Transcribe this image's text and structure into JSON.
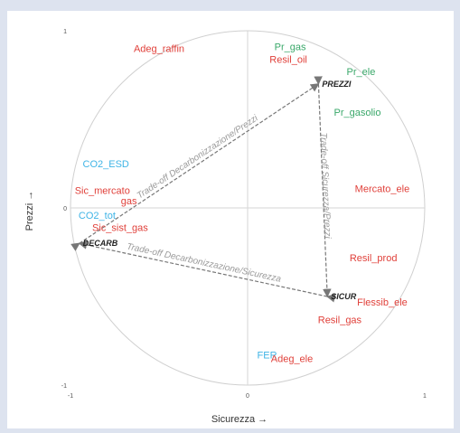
{
  "chart_data": {
    "type": "scatter",
    "title": "",
    "xlabel": "Sicurezza →",
    "ylabel": "Prezzi →",
    "xlim": [
      -1,
      1
    ],
    "ylim": [
      -1,
      1
    ],
    "grid": false,
    "unit_circle": true,
    "x_ticks": [
      "-1",
      "0",
      "1"
    ],
    "y_ticks": [
      "1",
      "0",
      "-1"
    ],
    "colors": {
      "red": "#e0403a",
      "green": "#3aa86a",
      "blue": "#3fb4e6",
      "arrow": "#777777"
    },
    "variables": [
      {
        "label": "Adeg_raffin",
        "x": -0.5,
        "y": 0.88,
        "color": "red"
      },
      {
        "label": "Pr_gas",
        "x": 0.24,
        "y": 0.89,
        "color": "green"
      },
      {
        "label": "Resil_oil",
        "x": 0.23,
        "y": 0.82,
        "color": "red"
      },
      {
        "label": "Pr_ele",
        "x": 0.64,
        "y": 0.75,
        "color": "green"
      },
      {
        "label": "Pr_gasolio",
        "x": 0.62,
        "y": 0.52,
        "color": "green"
      },
      {
        "label": "CO2_ESD",
        "x": -0.8,
        "y": 0.23,
        "color": "blue"
      },
      {
        "label": "Mercato_ele",
        "x": 0.76,
        "y": 0.09,
        "color": "red"
      },
      {
        "label": "Sic_mercato",
        "x": -0.82,
        "y": 0.08,
        "color": "red"
      },
      {
        "label": "gas",
        "x": -0.67,
        "y": 0.02,
        "color": "red"
      },
      {
        "label": "CO2_tot",
        "x": -0.85,
        "y": -0.06,
        "color": "blue"
      },
      {
        "label": "Sic_sist_gas",
        "x": -0.72,
        "y": -0.13,
        "color": "red"
      },
      {
        "label": "Resil_prod",
        "x": 0.71,
        "y": -0.3,
        "color": "red"
      },
      {
        "label": "Flessib_ele",
        "x": 0.76,
        "y": -0.55,
        "color": "red"
      },
      {
        "label": "Resil_gas",
        "x": 0.52,
        "y": -0.65,
        "color": "red"
      },
      {
        "label": "FER",
        "x": 0.11,
        "y": -0.85,
        "color": "blue"
      },
      {
        "label": "Adeg_ele",
        "x": 0.25,
        "y": -0.87,
        "color": "red"
      }
    ],
    "nodes": [
      {
        "label": "PREZZI",
        "x": 0.4,
        "y": 0.7
      },
      {
        "label": "DECARB",
        "x": -0.95,
        "y": -0.2
      },
      {
        "label": "SICUR",
        "x": 0.45,
        "y": -0.5
      }
    ],
    "trade_offs": [
      {
        "label": "Trade-off Decarbonizzazione/Prezzi",
        "from": 1,
        "to": 0
      },
      {
        "label": "Trade-off Sicurezza/Prezzi",
        "from": 0,
        "to": 2
      },
      {
        "label": "Trade-off Decarbonizzazione/Sicurezza",
        "from": 2,
        "to": 1
      }
    ]
  }
}
